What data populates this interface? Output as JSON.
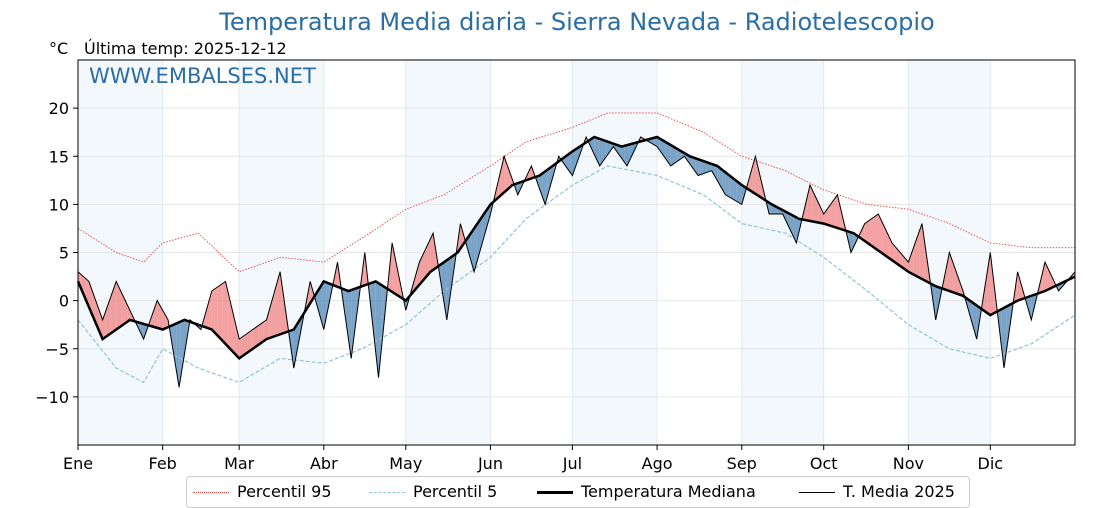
{
  "chart_data": {
    "type": "line",
    "title": "Temperatura Media diaria - Sierra Nevada - Radiotelescopio",
    "ylabel_unit": "°C",
    "subtitle": "Última temp: 2025-12-12",
    "watermark": "WWW.EMBALSES.NET",
    "xlabel": "",
    "ylim": [
      -15,
      25
    ],
    "xlim": [
      1,
      366
    ],
    "yticks": [
      -10,
      -5,
      0,
      5,
      10,
      15,
      20
    ],
    "ytick_labels": [
      "−10",
      "−5",
      "0",
      "5",
      "10",
      "15",
      "20"
    ],
    "months": [
      "Ene",
      "Feb",
      "Mar",
      "Abr",
      "May",
      "Jun",
      "Jul",
      "Ago",
      "Sep",
      "Oct",
      "Nov",
      "Dic"
    ],
    "month_start_days": [
      1,
      32,
      60,
      91,
      121,
      152,
      182,
      213,
      244,
      274,
      305,
      335
    ],
    "shaded_month_bands": [
      "Ene",
      "Mar",
      "May",
      "Jul",
      "Sep",
      "Nov"
    ],
    "grid": true,
    "legend_position": "bottom-center",
    "series": [
      {
        "name": "Percentil 95",
        "style": "dotted",
        "color": "#e8413c",
        "x": [
          1,
          15,
          25,
          32,
          45,
          60,
          75,
          91,
          105,
          121,
          135,
          152,
          165,
          182,
          195,
          213,
          230,
          244,
          260,
          274,
          290,
          305,
          320,
          335,
          350,
          366
        ],
        "values": [
          7.5,
          5.0,
          4.0,
          6.0,
          7.0,
          3.0,
          4.5,
          4.0,
          6.5,
          9.5,
          11.0,
          14.0,
          16.5,
          18.0,
          19.5,
          19.5,
          17.5,
          15.0,
          13.5,
          11.5,
          10.0,
          9.5,
          8.0,
          6.0,
          5.5,
          5.5
        ]
      },
      {
        "name": "Percentil 5",
        "style": "dashed",
        "color": "#8fc4dc",
        "x": [
          1,
          15,
          25,
          32,
          45,
          60,
          75,
          91,
          105,
          121,
          135,
          152,
          165,
          182,
          195,
          213,
          230,
          244,
          260,
          274,
          290,
          305,
          320,
          335,
          350,
          366
        ],
        "values": [
          -2.0,
          -7.0,
          -8.5,
          -5.0,
          -7.0,
          -8.5,
          -6.0,
          -6.5,
          -5.0,
          -2.5,
          1.0,
          4.5,
          8.5,
          12.0,
          14.0,
          13.0,
          11.0,
          8.0,
          7.0,
          4.5,
          1.0,
          -2.5,
          -5.0,
          -6.0,
          -4.5,
          -1.5
        ]
      },
      {
        "name": "Temperatura Mediana",
        "style": "solid-thick",
        "color": "#000000",
        "x": [
          1,
          10,
          20,
          32,
          40,
          50,
          60,
          70,
          80,
          91,
          100,
          110,
          121,
          130,
          140,
          152,
          160,
          170,
          182,
          190,
          200,
          213,
          225,
          235,
          244,
          255,
          265,
          274,
          285,
          295,
          305,
          315,
          325,
          335,
          345,
          355,
          366
        ],
        "values": [
          2.0,
          -4.0,
          -2.0,
          -3.0,
          -2.0,
          -3.0,
          -6.0,
          -4.0,
          -3.0,
          2.0,
          1.0,
          2.0,
          0.0,
          3.0,
          5.0,
          10.0,
          12.0,
          13.0,
          15.5,
          17.0,
          16.0,
          17.0,
          15.0,
          14.0,
          12.0,
          10.0,
          8.5,
          8.0,
          7.0,
          5.0,
          3.0,
          1.5,
          0.5,
          -1.5,
          0.0,
          1.0,
          2.5
        ]
      },
      {
        "name": "T. Media 2025",
        "style": "solid-thin",
        "color": "#000000",
        "x": [
          1,
          5,
          10,
          15,
          20,
          25,
          30,
          34,
          38,
          42,
          46,
          50,
          55,
          60,
          65,
          70,
          75,
          80,
          86,
          91,
          96,
          101,
          106,
          111,
          116,
          121,
          126,
          131,
          136,
          141,
          146,
          152,
          157,
          162,
          167,
          172,
          177,
          182,
          187,
          192,
          197,
          202,
          207,
          213,
          218,
          223,
          228,
          233,
          238,
          244,
          249,
          254,
          259,
          264,
          269,
          274,
          279,
          284,
          289,
          294,
          299,
          305,
          310,
          315,
          320,
          325,
          330,
          335,
          340,
          345,
          350,
          355,
          360,
          366
        ],
        "values": [
          3.0,
          2.0,
          -2.0,
          2.0,
          -1.0,
          -4.0,
          0.0,
          -2.0,
          -9.0,
          -2.0,
          -3.0,
          1.0,
          2.0,
          -4.0,
          -3.0,
          -2.0,
          3.0,
          -7.0,
          2.0,
          -3.0,
          4.0,
          -6.0,
          5.0,
          -8.0,
          6.0,
          -1.0,
          4.0,
          7.0,
          -2.0,
          8.0,
          3.0,
          9.0,
          15.0,
          11.0,
          14.0,
          10.0,
          15.0,
          13.0,
          17.0,
          14.0,
          16.0,
          14.0,
          17.0,
          16.0,
          14.0,
          15.0,
          13.0,
          13.5,
          11.0,
          10.0,
          15.0,
          9.0,
          9.0,
          6.0,
          12.0,
          9.0,
          11.0,
          5.0,
          8.0,
          9.0,
          6.0,
          4.0,
          8.0,
          -2.0,
          5.0,
          1.0,
          -4.0,
          5.0,
          -7.0,
          3.0,
          -2.0,
          4.0,
          1.0,
          3.0
        ]
      }
    ],
    "fill_above_median_color": "#f08080",
    "fill_below_median_color": "#4e84b5"
  },
  "legend": {
    "p95": "Percentil 95",
    "p5": "Percentil 5",
    "median": "Temperatura Mediana",
    "current": "T. Media 2025"
  }
}
